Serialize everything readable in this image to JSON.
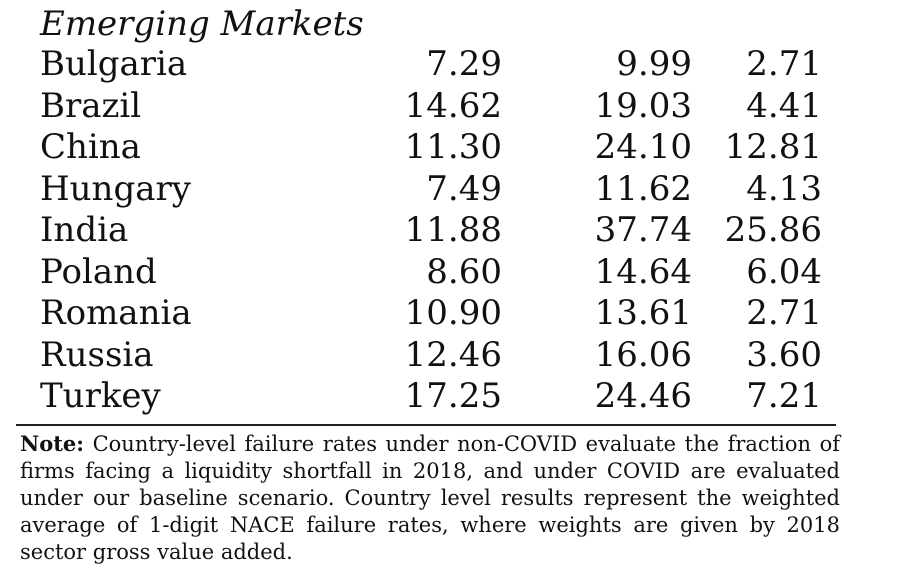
{
  "section_title": "Emerging Markets",
  "rows": [
    {
      "country": "Bulgaria",
      "values": [
        "7.29",
        "9.99",
        "2.71"
      ]
    },
    {
      "country": "Brazil",
      "values": [
        "14.62",
        "19.03",
        "4.41"
      ]
    },
    {
      "country": "China",
      "values": [
        "11.30",
        "24.10",
        "12.81"
      ]
    },
    {
      "country": "Hungary",
      "values": [
        "7.49",
        "11.62",
        "4.13"
      ]
    },
    {
      "country": "India",
      "values": [
        "11.88",
        "37.74",
        "25.86"
      ]
    },
    {
      "country": "Poland",
      "values": [
        "8.60",
        "14.64",
        "6.04"
      ]
    },
    {
      "country": "Romania",
      "values": [
        "10.90",
        "13.61",
        "2.71"
      ]
    },
    {
      "country": "Russia",
      "values": [
        "12.46",
        "16.06",
        "3.60"
      ]
    },
    {
      "country": "Turkey",
      "values": [
        "17.25",
        "24.46",
        "7.21"
      ]
    }
  ],
  "note": {
    "label": "Note:",
    "text": "Country-level failure rates under non-COVID evaluate the fraction of firms facing a liquidity shortfall in 2018, and under COVID are evaluated under our baseline scenario. Country level results represent the weighted average of 1-digit NACE failure rates, where weights are given by 2018 sector gross value added."
  }
}
